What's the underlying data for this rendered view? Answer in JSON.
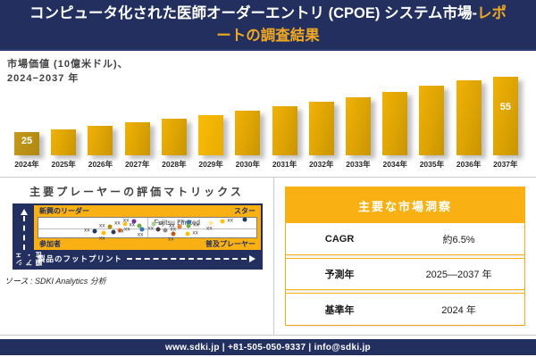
{
  "header": {
    "title_main": "コンピュータ化された医師オーダーエントリ (CPOE) システム市場-",
    "title_accent": "レポートの調査結果"
  },
  "bar_section": {
    "label_line1": "市場価値  (10億米ドル)、",
    "label_line2": "2024−2037 年"
  },
  "chart_data": [
    {
      "type": "bar",
      "title": "市場価値 (10億米ドル)、2024−2037 年",
      "categories": [
        "2024年",
        "2025年",
        "2026年",
        "2027年",
        "2028年",
        "2029年",
        "2030年",
        "2031年",
        "2032年",
        "2033年",
        "2034年",
        "2035年",
        "2036年",
        "2037年"
      ],
      "values": [
        25,
        26.6,
        28.4,
        30.2,
        32.2,
        34.3,
        36.5,
        38.9,
        41.4,
        44.1,
        47.0,
        50.0,
        53.3,
        55
      ],
      "data_labels": [
        "25",
        null,
        null,
        null,
        null,
        null,
        null,
        null,
        null,
        null,
        null,
        null,
        null,
        "55"
      ],
      "xlabel": "",
      "ylabel": "市場価値 (10億米ドル)",
      "ylim": [
        0,
        60
      ],
      "grid": false,
      "legend": false,
      "bar_color": "#E3A504",
      "first_bar_color": "#BC9215"
    },
    {
      "type": "scatter",
      "title": "主要プレーヤーの評価マトリックス",
      "xlabel": "製品のフットプリント",
      "ylabel": "市場シェア・順位",
      "quadrants": {
        "top_left": "新興のリーダー",
        "top_right": "スター",
        "bottom_left": "参加者",
        "bottom_right": "普及プレーヤー"
      },
      "annotation": "Fujitsu Limited",
      "points": [
        {
          "x": 43.8,
          "y": 17.5,
          "color": "#7030A0",
          "label": "xx",
          "label_pos": "left"
        },
        {
          "x": 39.8,
          "y": 31.0,
          "color": "#FFC21E",
          "label": "xx",
          "label_pos": "left"
        },
        {
          "x": 46.5,
          "y": 41.0,
          "color": "#6FAC46",
          "label": "xx",
          "label_pos": "left"
        },
        {
          "x": 32.8,
          "y": 47.5,
          "color": "#B38B00",
          "label": "xx",
          "label_pos": "left"
        },
        {
          "x": 94.5,
          "y": 7.5,
          "color": "#1F3864",
          "label": "",
          "label_pos": "right"
        },
        {
          "x": 69.0,
          "y": 24.0,
          "color": "#2E75B6",
          "label": "xx",
          "label_pos": "left"
        },
        {
          "x": 84.4,
          "y": 19.0,
          "color": "#FFC000",
          "label": "xx",
          "label_pos": "right"
        },
        {
          "x": 79.3,
          "y": 26.0,
          "color": "#FFE699",
          "label": "xx",
          "label_pos": "below"
        },
        {
          "x": 52.7,
          "y": 30.0,
          "color": "#A9D18E",
          "label": "xx",
          "label_pos": "right"
        },
        {
          "x": 64.8,
          "y": 44.0,
          "color": "#ED7D31",
          "label": "xx",
          "label_pos": "left"
        },
        {
          "x": 68.8,
          "y": 42.5,
          "color": "#70AD47",
          "label": "xx",
          "label_pos": "right"
        },
        {
          "x": 37.1,
          "y": 62.5,
          "color": "#ED7D31",
          "label": "xx",
          "label_pos": "right"
        },
        {
          "x": 47.7,
          "y": 61.0,
          "color": "#2E75B6",
          "label": "xx",
          "label_pos": "below"
        },
        {
          "x": 25.8,
          "y": 70.0,
          "color": "#1F3864",
          "label": "xx",
          "label_pos": "left"
        },
        {
          "x": 34.4,
          "y": 74.0,
          "color": "#2F3B52",
          "label": "xx",
          "label_pos": "right"
        },
        {
          "x": 30.1,
          "y": 76.0,
          "color": "#FFC000",
          "label": "xx",
          "label_pos": "below"
        },
        {
          "x": 55.1,
          "y": 60.0,
          "color": "#404040",
          "label": "xx",
          "label_pos": "left"
        },
        {
          "x": 58.2,
          "y": 64.0,
          "color": "#8C8C8C",
          "label": "xx",
          "label_pos": "right"
        },
        {
          "x": 61.7,
          "y": 82.5,
          "color": "#C55A11",
          "label": "xx",
          "label_pos": "below"
        },
        {
          "x": 68.4,
          "y": 80.0,
          "color": "#FFC000",
          "label": "xx",
          "label_pos": "right"
        }
      ],
      "legend": false,
      "grid": "quadrant"
    }
  ],
  "insights": {
    "title": "主要な市場洞察",
    "rows": [
      {
        "label": "CAGR",
        "value": "約6.5%"
      },
      {
        "label": "予測年",
        "value": "2025—2037 年"
      },
      {
        "label": "基準年",
        "value": "2024 年"
      }
    ]
  },
  "source": "ソース : SDKI Analytics 分析",
  "footer": {
    "text": "www.sdki.jp | +81-505-050-9337 | info@sdki.jp"
  },
  "colors": {
    "navy": "#232F5E",
    "gold": "#F9B013",
    "accent_title": "#F0A822",
    "bar_gold": "#E3A504",
    "divider_gray": "#C9C9C9"
  }
}
